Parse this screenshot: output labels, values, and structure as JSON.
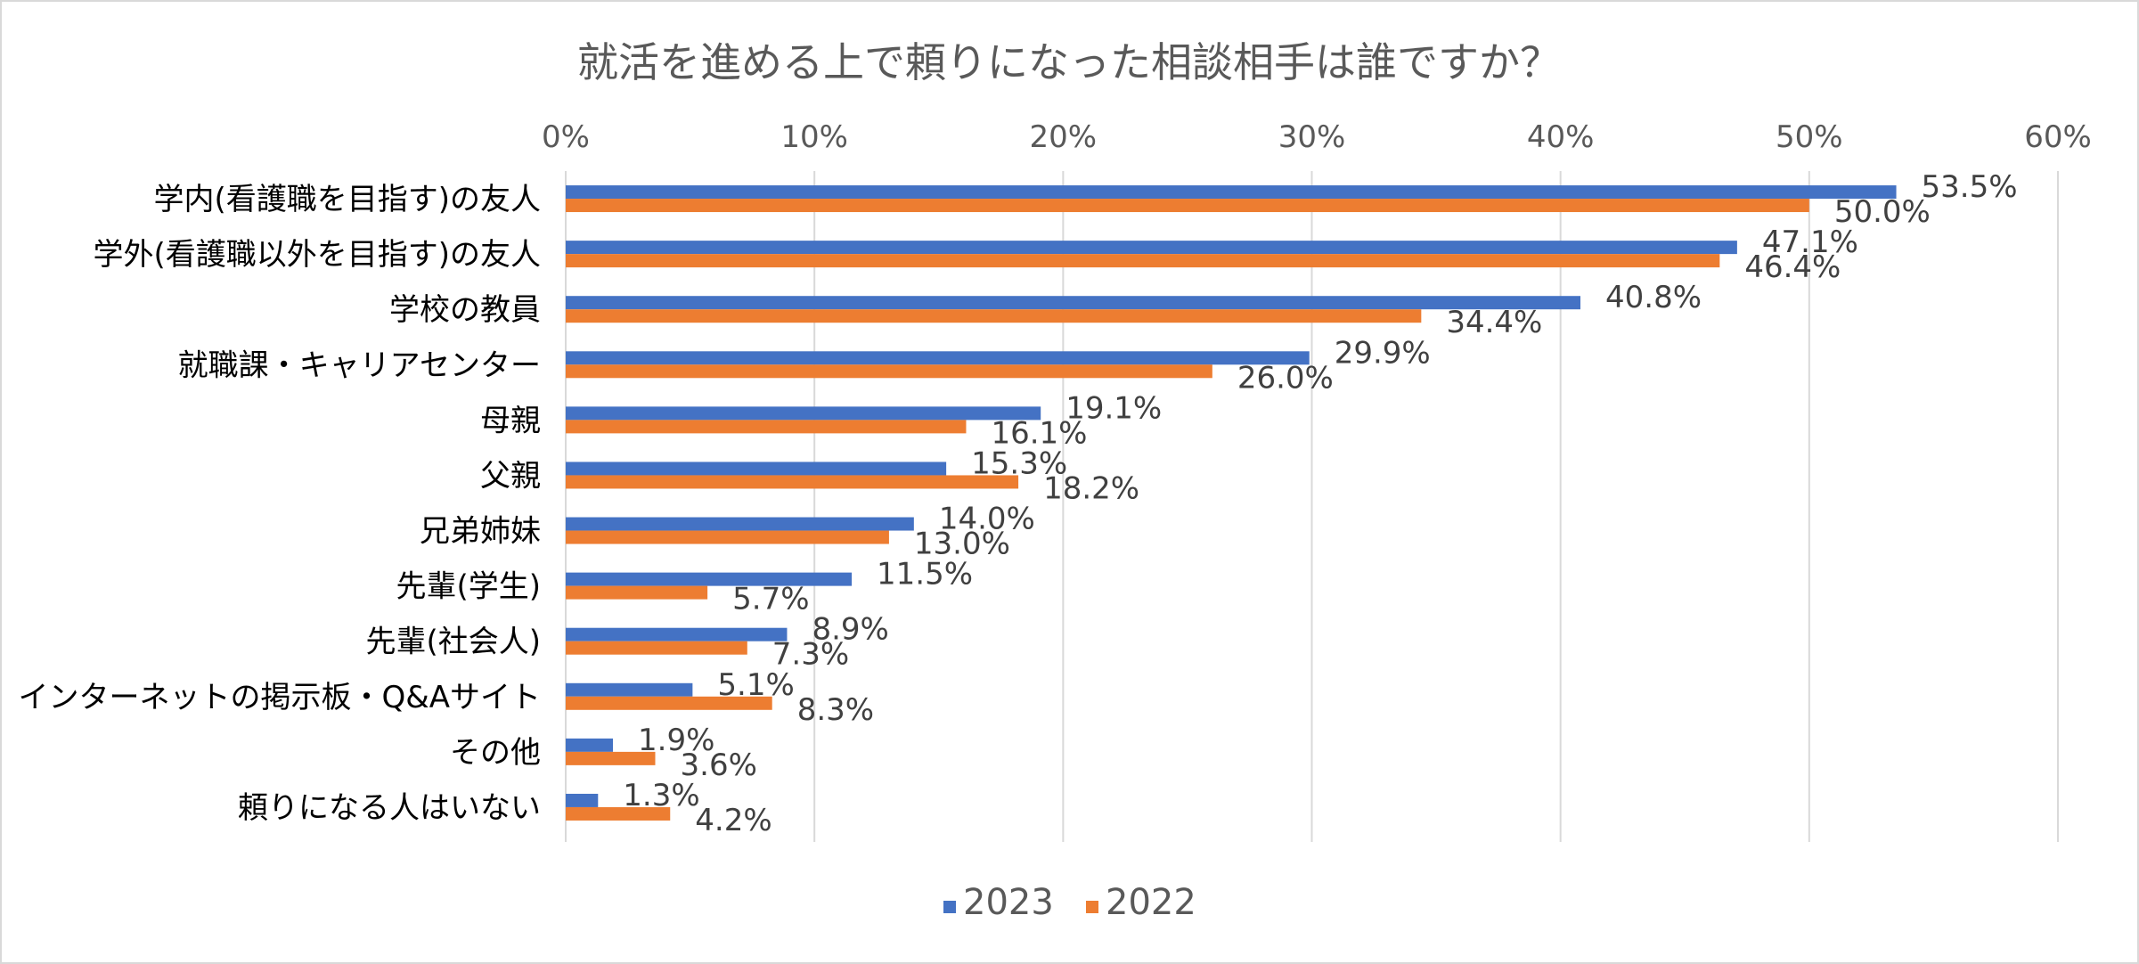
{
  "chart_data": {
    "type": "bar",
    "orientation": "horizontal",
    "title": "就活を進める上で頼りになった相談相手は誰ですか？",
    "xlabel": "",
    "ylabel": "",
    "xlim": [
      0,
      60
    ],
    "x_ticks": [
      "0%",
      "10%",
      "20%",
      "30%",
      "40%",
      "50%",
      "60%"
    ],
    "grid": true,
    "legend_position": "bottom",
    "categories": [
      "学内(看護職を目指す)の友人",
      "学外(看護職以外を目指す)の友人",
      "学校の教員",
      "就職課・キャリアセンター",
      "母親",
      "父親",
      "兄弟姉妹",
      "先輩(学生)",
      "先輩(社会人)",
      "インターネットの掲示板・Q&Aサイト",
      "その他",
      "頼りになる人はいない"
    ],
    "series": [
      {
        "name": "2023",
        "color": "#4472c4",
        "values": [
          53.5,
          47.1,
          40.8,
          29.9,
          19.1,
          15.3,
          14.0,
          11.5,
          8.9,
          5.1,
          1.9,
          1.3
        ],
        "labels": [
          "53.5%",
          "47.1%",
          "40.8%",
          "29.9%",
          "19.1%",
          "15.3%",
          "14.0%",
          "11.5%",
          "8.9%",
          "5.1%",
          "1.9%",
          "1.3%"
        ]
      },
      {
        "name": "2022",
        "color": "#ed7d31",
        "values": [
          50.0,
          46.4,
          34.4,
          26.0,
          16.1,
          18.2,
          13.0,
          5.7,
          7.3,
          8.3,
          3.6,
          4.2
        ],
        "labels": [
          "50.0%",
          "46.4%",
          "34.4%",
          "26.0%",
          "16.1%",
          "18.2%",
          "13.0%",
          "5.7%",
          "7.3%",
          "8.3%",
          "3.6%",
          "4.2%"
        ]
      }
    ]
  }
}
